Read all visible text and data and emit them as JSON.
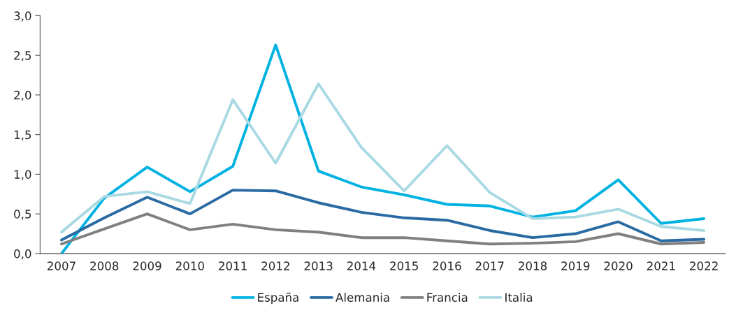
{
  "chart_data": {
    "type": "line",
    "categories": [
      "2007",
      "2008",
      "2009",
      "2010",
      "2011",
      "2012",
      "2013",
      "2014",
      "2015",
      "2016",
      "2017",
      "2018",
      "2019",
      "2020",
      "2021",
      "2022"
    ],
    "series": [
      {
        "name": "España",
        "color": "#00b2e2",
        "values": [
          0.0,
          0.7,
          1.09,
          0.78,
          1.1,
          2.63,
          1.04,
          0.84,
          0.74,
          0.62,
          0.6,
          0.46,
          0.54,
          0.93,
          0.38,
          0.44
        ]
      },
      {
        "name": "Alemania",
        "color": "#2a6aa3",
        "values": [
          0.17,
          0.45,
          0.71,
          0.5,
          0.8,
          0.79,
          0.64,
          0.52,
          0.45,
          0.42,
          0.29,
          0.2,
          0.25,
          0.4,
          0.16,
          0.18
        ]
      },
      {
        "name": "Francia",
        "color": "#808080",
        "values": [
          0.12,
          0.31,
          0.5,
          0.3,
          0.37,
          0.3,
          0.27,
          0.2,
          0.2,
          0.16,
          0.12,
          0.13,
          0.15,
          0.25,
          0.12,
          0.14
        ]
      },
      {
        "name": "Italia",
        "color": "#a9d9e2",
        "values": [
          0.27,
          0.72,
          0.78,
          0.63,
          1.94,
          1.14,
          2.14,
          1.34,
          0.79,
          1.36,
          0.77,
          0.44,
          0.46,
          0.56,
          0.34,
          0.29
        ]
      }
    ],
    "ylim": [
      0,
      3
    ],
    "yticks": [
      {
        "value": 0,
        "label": "0,0"
      },
      {
        "value": 0.5,
        "label": "0,5"
      },
      {
        "value": 1,
        "label": "1,0"
      },
      {
        "value": 1.5,
        "label": "1,5"
      },
      {
        "value": 2,
        "label": "2,0"
      },
      {
        "value": 2.5,
        "label": "2,5"
      },
      {
        "value": 3,
        "label": "3,0"
      }
    ],
    "legend": "bottom",
    "grid": false,
    "marker": "none",
    "line_style": "solid"
  }
}
